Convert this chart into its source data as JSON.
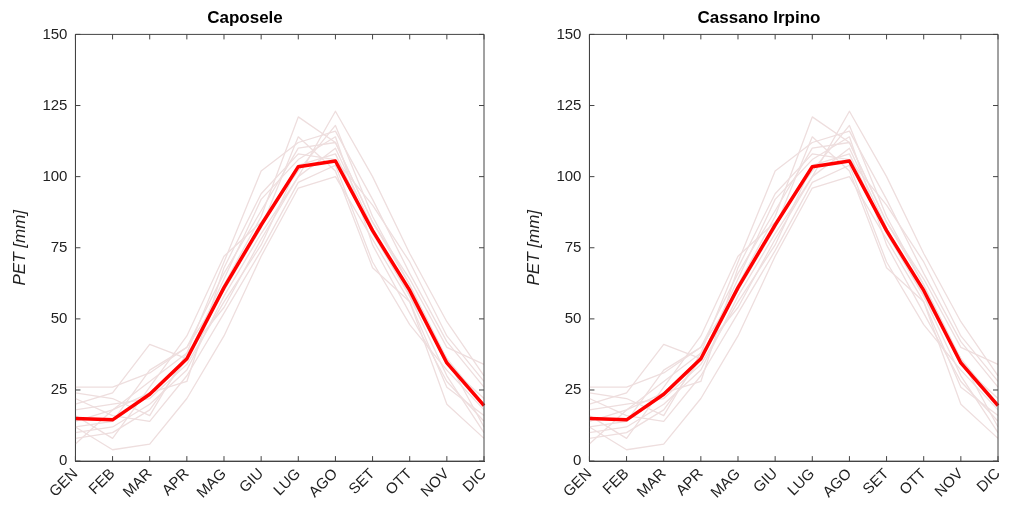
{
  "chart_data": [
    {
      "type": "line",
      "title": "Caposele",
      "ylabel": "PET [mm]",
      "categories": [
        "GEN",
        "FEB",
        "MAR",
        "APR",
        "MAG",
        "GIU",
        "LUG",
        "AGO",
        "SET",
        "OTT",
        "NOV",
        "DIC"
      ],
      "ylim": [
        0,
        150
      ],
      "yticks": [
        0,
        25,
        50,
        75,
        100,
        125,
        150
      ],
      "grid": false,
      "legend": false,
      "marker": "none",
      "line_style": "solid",
      "series": [
        {
          "color": "#eedede",
          "values": [
            26,
            26,
            31,
            40,
            66,
            88,
            110,
            112,
            84,
            62,
            36,
            20
          ]
        },
        {
          "color": "#eedede",
          "values": [
            12,
            4,
            6,
            22,
            44,
            72,
            96,
            100,
            78,
            56,
            20,
            8
          ]
        },
        {
          "color": "#eedede",
          "values": [
            20,
            24,
            41,
            36,
            62,
            86,
            121,
            112,
            84,
            64,
            40,
            34
          ]
        },
        {
          "color": "#eedede",
          "values": [
            14,
            18,
            28,
            38,
            70,
            102,
            112,
            116,
            92,
            66,
            42,
            26
          ]
        },
        {
          "color": "#eedede",
          "values": [
            10,
            12,
            20,
            32,
            58,
            80,
            100,
            123,
            100,
            73,
            49,
            30
          ]
        },
        {
          "color": "#eedede",
          "values": [
            18,
            20,
            22,
            34,
            56,
            76,
            104,
            108,
            80,
            58,
            30,
            10
          ]
        },
        {
          "color": "#eedede",
          "values": [
            8,
            10,
            18,
            36,
            64,
            92,
            106,
            114,
            76,
            52,
            28,
            14
          ]
        },
        {
          "color": "#eedede",
          "values": [
            22,
            16,
            14,
            30,
            52,
            74,
            98,
            104,
            70,
            48,
            32,
            18
          ]
        },
        {
          "color": "#eedede",
          "values": [
            16,
            8,
            26,
            44,
            72,
            84,
            102,
            118,
            86,
            62,
            34,
            22
          ]
        },
        {
          "color": "#eedede",
          "values": [
            12,
            14,
            32,
            40,
            60,
            82,
            114,
            102,
            68,
            56,
            26,
            16
          ]
        },
        {
          "color": "#eedede",
          "values": [
            6,
            18,
            24,
            28,
            68,
            94,
            108,
            106,
            90,
            70,
            44,
            28
          ]
        },
        {
          "color": "#eedede",
          "values": [
            24,
            22,
            16,
            38,
            54,
            78,
            100,
            110,
            82,
            58,
            36,
            12
          ]
        },
        {
          "color": "#ff0000",
          "values": [
            15,
            14.5,
            23.5,
            36,
            61,
            83,
            103.5,
            105.5,
            81,
            60,
            34.5,
            19.5
          ]
        }
      ]
    },
    {
      "type": "line",
      "title": "Cassano Irpino",
      "ylabel": "PET [mm]",
      "categories": [
        "GEN",
        "FEB",
        "MAR",
        "APR",
        "MAG",
        "GIU",
        "LUG",
        "AGO",
        "SET",
        "OTT",
        "NOV",
        "DIC"
      ],
      "ylim": [
        0,
        150
      ],
      "yticks": [
        0,
        25,
        50,
        75,
        100,
        125,
        150
      ],
      "grid": false,
      "legend": false,
      "marker": "none",
      "line_style": "solid",
      "series": [
        {
          "color": "#eedede",
          "values": [
            26,
            26,
            31,
            40,
            66,
            88,
            110,
            112,
            84,
            62,
            36,
            20
          ]
        },
        {
          "color": "#eedede",
          "values": [
            12,
            4,
            6,
            22,
            44,
            72,
            96,
            100,
            78,
            56,
            20,
            8
          ]
        },
        {
          "color": "#eedede",
          "values": [
            20,
            24,
            41,
            36,
            62,
            86,
            121,
            112,
            84,
            64,
            40,
            34
          ]
        },
        {
          "color": "#eedede",
          "values": [
            14,
            18,
            28,
            38,
            70,
            102,
            112,
            116,
            92,
            66,
            42,
            26
          ]
        },
        {
          "color": "#eedede",
          "values": [
            10,
            12,
            20,
            32,
            58,
            80,
            100,
            123,
            100,
            73,
            49,
            30
          ]
        },
        {
          "color": "#eedede",
          "values": [
            18,
            20,
            22,
            34,
            56,
            76,
            104,
            108,
            80,
            58,
            30,
            10
          ]
        },
        {
          "color": "#eedede",
          "values": [
            8,
            10,
            18,
            36,
            64,
            92,
            106,
            114,
            76,
            52,
            28,
            14
          ]
        },
        {
          "color": "#eedede",
          "values": [
            22,
            16,
            14,
            30,
            52,
            74,
            98,
            104,
            70,
            48,
            32,
            18
          ]
        },
        {
          "color": "#eedede",
          "values": [
            16,
            8,
            26,
            44,
            72,
            84,
            102,
            118,
            86,
            62,
            34,
            22
          ]
        },
        {
          "color": "#eedede",
          "values": [
            12,
            14,
            32,
            40,
            60,
            82,
            114,
            102,
            68,
            56,
            26,
            16
          ]
        },
        {
          "color": "#eedede",
          "values": [
            6,
            18,
            24,
            28,
            68,
            94,
            108,
            106,
            90,
            70,
            44,
            28
          ]
        },
        {
          "color": "#eedede",
          "values": [
            24,
            22,
            16,
            38,
            54,
            78,
            100,
            110,
            82,
            58,
            36,
            12
          ]
        },
        {
          "color": "#ff0000",
          "values": [
            15,
            14.5,
            23.5,
            36,
            61,
            83,
            103.5,
            105.5,
            81,
            60,
            34.5,
            19.5
          ]
        }
      ]
    }
  ]
}
